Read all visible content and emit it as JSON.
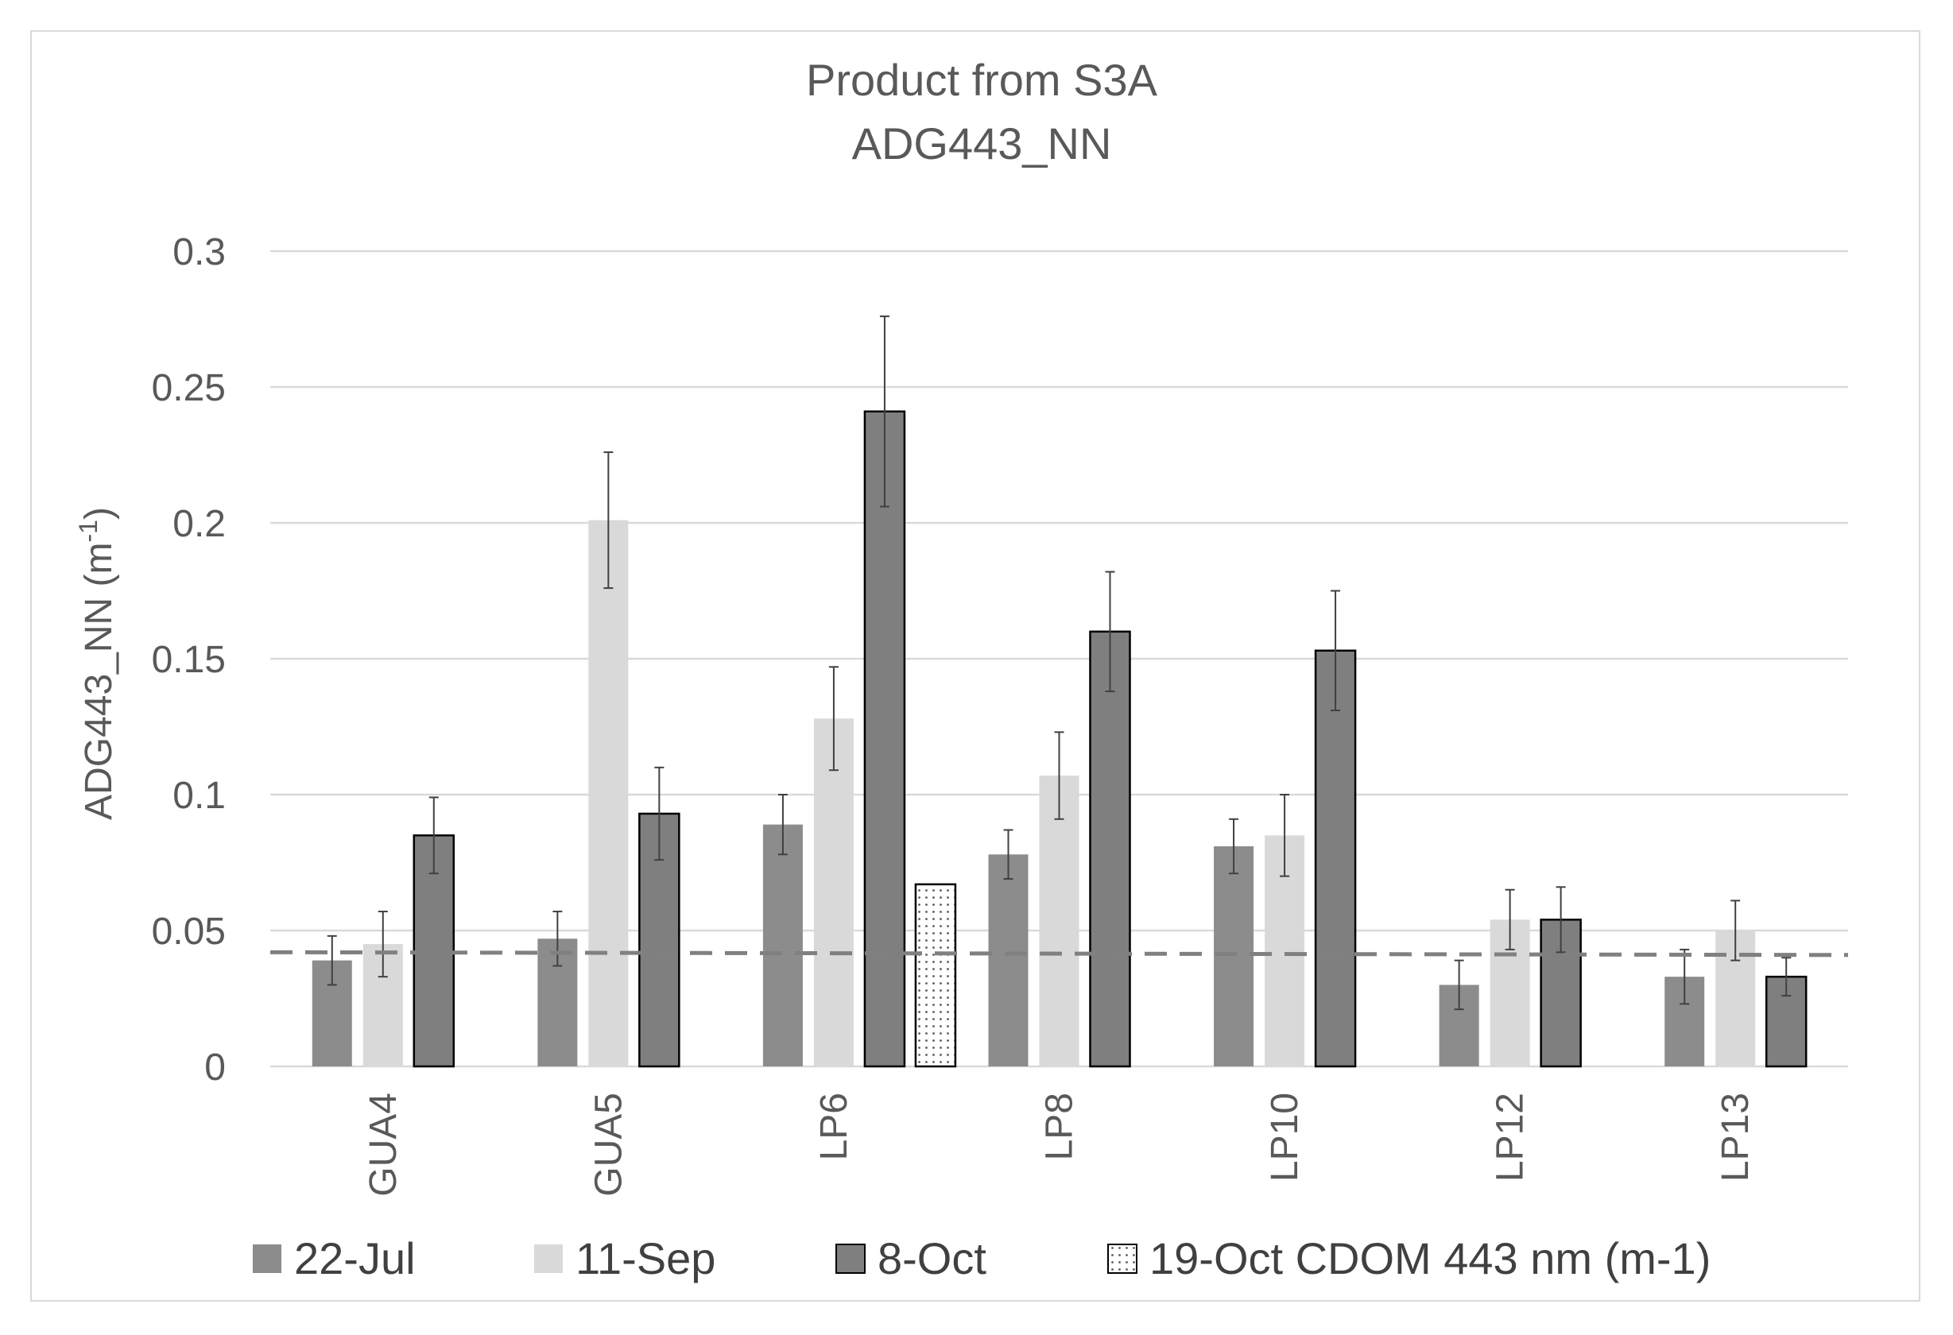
{
  "colors": {
    "jul": "#8c8c8c",
    "sep": "#d9d9d9",
    "oct": "#7f7f7f",
    "oct_stroke": "#000000",
    "cdom_fill": "#ffffff",
    "cdom_dot": "#595959",
    "gridline": "#d9d9d9",
    "dashed_line": "#808080",
    "error_bar": "#404040"
  },
  "chart_data": {
    "type": "bar",
    "title": "Product from S3A",
    "subtitle": "ADG443_NN",
    "xlabel": "",
    "ylabel": "ADG443_NN (m",
    "ylabel_superscript": "-1",
    "ylabel_suffix": ")",
    "ylim": [
      0,
      0.3
    ],
    "yticks": [
      0,
      0.05,
      0.1,
      0.15,
      0.2,
      0.25,
      0.3
    ],
    "ytick_labels": [
      "0",
      "0.05",
      "0.1",
      "0.15",
      "0.2",
      "0.25",
      "0.3"
    ],
    "grid": true,
    "legend_position": "bottom",
    "categories": [
      "GUA4",
      "GUA5",
      "LP6",
      "LP8",
      "LP10",
      "LP12",
      "LP13"
    ],
    "series": [
      {
        "name": "22-Jul",
        "pattern": "solid-medium",
        "values": [
          0.039,
          0.047,
          0.089,
          0.078,
          0.081,
          0.03,
          0.033
        ],
        "errors": [
          0.009,
          0.01,
          0.011,
          0.009,
          0.01,
          0.009,
          0.01
        ]
      },
      {
        "name": "11-Sep",
        "pattern": "solid-light",
        "values": [
          0.045,
          0.201,
          0.128,
          0.107,
          0.085,
          0.054,
          0.05
        ],
        "errors": [
          0.012,
          0.025,
          0.019,
          0.016,
          0.015,
          0.011,
          0.011
        ]
      },
      {
        "name": "8-Oct",
        "pattern": "solid-outlined",
        "values": [
          0.085,
          0.093,
          0.241,
          0.16,
          0.153,
          0.054,
          0.033
        ],
        "errors": [
          0.014,
          0.017,
          0.035,
          0.022,
          0.022,
          0.012,
          0.007
        ]
      },
      {
        "name": "19-Oct CDOM 443 nm (m-1)",
        "pattern": "dotted",
        "values": [
          null,
          null,
          0.067,
          null,
          null,
          null,
          null
        ],
        "errors": [
          null,
          null,
          null,
          null,
          null,
          null,
          null
        ]
      }
    ],
    "reference_line": {
      "value": 0.042,
      "value_end": 0.041,
      "style": "dashed"
    }
  }
}
